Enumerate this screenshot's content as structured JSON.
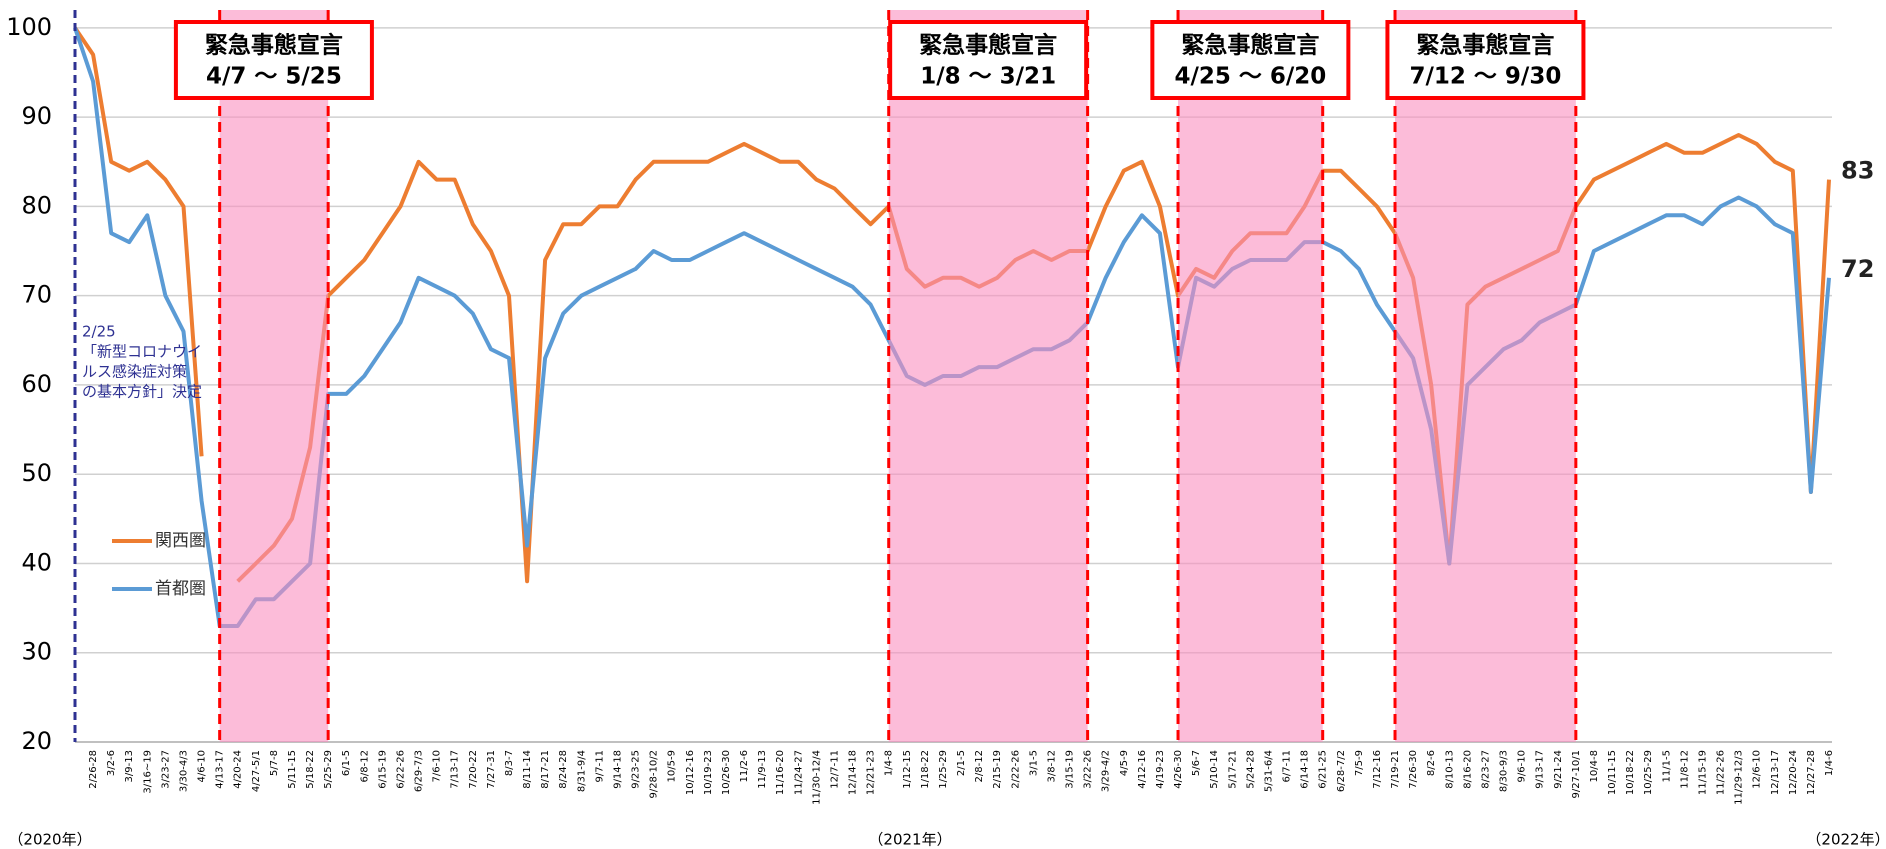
{
  "chart_data": {
    "type": "line",
    "categories": [
      null,
      "2/26-28",
      "3/2-6",
      "3/9-13",
      "3/16~19",
      "3/23-27",
      "3/30-4/3",
      "4/6-10",
      "4/13-17",
      "4/20-24",
      "4/27-5/1",
      "5/7-8",
      "5/11-15",
      "5/18-22",
      "5/25-29",
      "6/1-5",
      "6/8-12",
      "6/15-19",
      "6/22-26",
      "6/29-7/3",
      "7/6-10",
      "7/13-17",
      "7/20-22",
      "7/27-31",
      "8/3-7",
      "8/11-14",
      "8/17-21",
      "8/24-28",
      "8/31-9/4",
      "9/7-11",
      "9/14-18",
      "9/23-25",
      "9/28-10/2",
      "10/5-9",
      "10/12-16",
      "10/19-23",
      "10/26-30",
      "11/2-6",
      "11/9-13",
      "11/16-20",
      "11/24-27",
      "11/30-12/4",
      "12/7-11",
      "12/14-18",
      "12/21-23",
      "1/4-8",
      "1/12-15",
      "1/18-22",
      "1/25-29",
      "2/1-5",
      "2/8-12",
      "2/15-19",
      "2/22-26",
      "3/1-5",
      "3/8-12",
      "3/15-19",
      "3/22-26",
      "3/29-4/2",
      "4/5-9",
      "4/12-16",
      "4/19-23",
      "4/26-30",
      "5/6-7",
      "5/10-14",
      "5/17-21",
      "5/24-28",
      "5/31-6/4",
      "6/7-11",
      "6/14-18",
      "6/21-25",
      "6/28-7/2",
      "7/5-9",
      "7/12-16",
      "7/19-21",
      "7/26-30",
      "8/2-6",
      "8/10-13",
      "8/16-20",
      "8/23-27",
      "8/30-9/3",
      "9/6-10",
      "9/13-17",
      "9/21-24",
      "9/27-10/1",
      "10/4-8",
      "10/11-15",
      "10/18-22",
      "10/25-29",
      "11/1-5",
      "11/8-12",
      "11/15-19",
      "11/22-26",
      "11/29-12/3",
      "12/6-10",
      "12/13-17",
      "12/20-24",
      "12/27-28",
      "1/4-6"
    ],
    "series": [
      {
        "name": "関西圏",
        "color": "#ed7d31",
        "values": [
          100,
          97,
          85,
          84,
          85,
          83,
          80,
          52,
          null,
          38,
          40,
          42,
          45,
          53,
          70,
          72,
          74,
          77,
          80,
          85,
          83,
          83,
          78,
          75,
          70,
          38,
          74,
          78,
          78,
          80,
          80,
          83,
          85,
          85,
          85,
          85,
          86,
          87,
          86,
          85,
          85,
          83,
          82,
          80,
          78,
          80,
          73,
          71,
          72,
          72,
          71,
          72,
          74,
          75,
          74,
          75,
          75,
          80,
          84,
          85,
          80,
          70,
          73,
          72,
          75,
          77,
          77,
          77,
          80,
          84,
          84,
          82,
          80,
          77,
          72,
          60,
          40,
          69,
          71,
          72,
          73,
          74,
          75,
          80,
          83,
          84,
          85,
          86,
          87,
          86,
          86,
          87,
          88,
          87,
          85,
          84,
          48,
          83
        ]
      },
      {
        "name": "首都圏",
        "color": "#5b9bd5",
        "values": [
          100,
          94,
          77,
          76,
          79,
          70,
          66,
          47,
          33,
          33,
          36,
          36,
          38,
          40,
          59,
          59,
          61,
          64,
          67,
          72,
          71,
          70,
          68,
          64,
          63,
          42,
          63,
          68,
          70,
          71,
          72,
          73,
          75,
          74,
          74,
          75,
          76,
          77,
          76,
          75,
          74,
          73,
          72,
          71,
          69,
          65,
          61,
          60,
          61,
          61,
          62,
          62,
          63,
          64,
          64,
          65,
          67,
          72,
          76,
          79,
          77,
          62,
          72,
          71,
          73,
          74,
          74,
          74,
          76,
          76,
          75,
          73,
          69,
          66,
          63,
          55,
          40,
          60,
          62,
          64,
          65,
          67,
          68,
          69,
          75,
          76,
          77,
          78,
          79,
          79,
          78,
          80,
          81,
          80,
          78,
          77,
          48,
          72
        ]
      }
    ],
    "ylim": [
      20,
      102
    ],
    "yticks": [
      20,
      30,
      40,
      50,
      60,
      70,
      80,
      90,
      100
    ],
    "grid": true,
    "emergencies": [
      {
        "title": "緊急事態宣言",
        "period": "4/7 ～ 5/25",
        "start": "4/13-17",
        "end": "5/25-29"
      },
      {
        "title": "緊急事態宣言",
        "period": "1/8 ～ 3/21",
        "start": "1/4-8",
        "end": "3/22-26"
      },
      {
        "title": "緊急事態宣言",
        "period": "4/25 ～ 6/20",
        "start": "4/26-30",
        "end": "6/21-25"
      },
      {
        "title": "緊急事態宣言",
        "period": "7/12 ～ 9/30",
        "start": "7/19-21",
        "end": "9/27-10/1"
      }
    ],
    "note": [
      "2/25",
      "「新型コロナウイ",
      "ルス感染症対策",
      "の基本方針」決定"
    ],
    "year_labels": [
      "（2020年）",
      "（2021年）",
      "（2022年）"
    ]
  }
}
